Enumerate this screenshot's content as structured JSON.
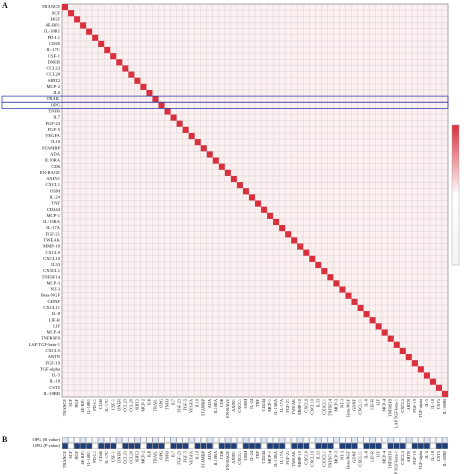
{
  "chart_data": {
    "type": "heatmap",
    "panel_a": "A",
    "panel_b": "B",
    "labels": [
      "TRANCE",
      "SCF",
      "HGF",
      "4E-BP1",
      "IL-18R1",
      "PD-L1",
      "CD40",
      "IL-17C",
      "CSF-1",
      "DNER",
      "CCL23",
      "CCL20",
      "SIRT2",
      "MCP-2",
      "IL6",
      "TRAIL",
      "OPG",
      "TNFB",
      "IL7",
      "FGF-23",
      "FGF-5",
      "VEGFA",
      "IL10",
      "STAMBP",
      "ADA",
      "IL10RA",
      "CD6",
      "EN-RAGE",
      "AXIN1",
      "CXCL1",
      "OSM",
      "IL-24",
      "TNF",
      "CD244",
      "MCP-1",
      "IL-15RA",
      "IL-17A",
      "FGF-21",
      "TWEAK",
      "MMP-10",
      "CXCL9",
      "CXCL10",
      "IL33",
      "CX3CL1",
      "TNFSF14",
      "MCP-3",
      "NT-3",
      "Beta-NGF",
      "GDNF",
      "CXCL11",
      "IL-8",
      "LIF-R",
      "LIF",
      "MCP-4",
      "TNFRSF9",
      "LAP TGF-beta-1",
      "CXCL5",
      "ARTN",
      "FGF-19",
      "TGF-alpha",
      "IL-5",
      "IL-18",
      "CST5",
      "IL-10RB"
    ],
    "diagonal_values": [
      1,
      1,
      1,
      1,
      1,
      1,
      1,
      1,
      1,
      1,
      1,
      1,
      1,
      1,
      1,
      1,
      1,
      1,
      1,
      1,
      1,
      1,
      1,
      1,
      1,
      1,
      1,
      1,
      1,
      1,
      1,
      1,
      1,
      1,
      1,
      1,
      1,
      1,
      1,
      1,
      1,
      1,
      1,
      1,
      1,
      1,
      1,
      1,
      1,
      1,
      1,
      1,
      1,
      1,
      1,
      1,
      1,
      1,
      1,
      1,
      1,
      1,
      1,
      1
    ],
    "color": "#d9303e",
    "panel_b_rows": [
      "OPG (R value)",
      "OPG (P value)"
    ]
  }
}
